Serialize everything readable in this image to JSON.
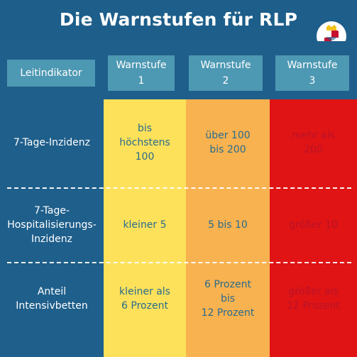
{
  "title": "Die Warnstufen für RLP",
  "crest_name": "rlp-coat-of-arms-icon",
  "header": {
    "leitindikator": "Leitindikator",
    "stufe1": [
      "Warnstufe",
      "1"
    ],
    "stufe2": [
      "Warnstufe",
      "2"
    ],
    "stufe3": [
      "Warnstufe",
      "3"
    ]
  },
  "rows": [
    {
      "label": [
        "7-Tage-Inzidenz"
      ],
      "s1": [
        "bis",
        "höchstens",
        "100"
      ],
      "s2": [
        "über 100",
        "bis 200"
      ],
      "s3": [
        "mehr als",
        "200"
      ]
    },
    {
      "label": [
        "7-Tage-",
        "Hospitalisierungs-",
        "Inzidenz"
      ],
      "s1": [
        "kleiner 5"
      ],
      "s2": [
        "5 bis 10"
      ],
      "s3": [
        "größer 10"
      ]
    },
    {
      "label": [
        "Anteil",
        "Intensivbetten"
      ],
      "s1": [
        "kleiner als",
        "6 Prozent"
      ],
      "s2": [
        "6 Prozent",
        "bis",
        "12 Prozent"
      ],
      "s3": [
        "größer als",
        "12 Prozent"
      ]
    }
  ],
  "colors": {
    "background": "#1f5f8b",
    "header_cell": "#4d98b3",
    "stufe1": "#fde15a",
    "stufe2": "#f8b24f",
    "stufe3": "#e01414",
    "text_dark": "#2a6b8c",
    "text_red": "#b8122a"
  }
}
